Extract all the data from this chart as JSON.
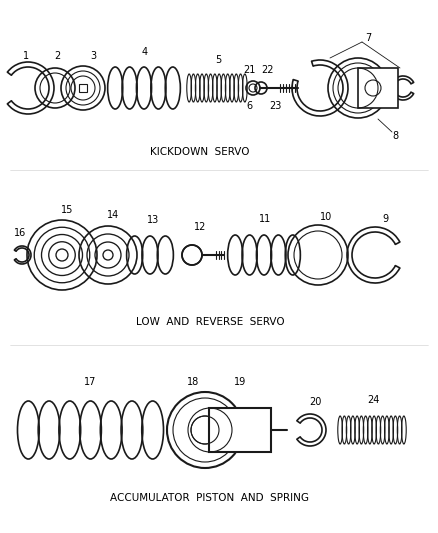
{
  "background_color": "#ffffff",
  "line_color": "#1a1a1a",
  "section_labels": [
    "KICKDOWN  SERVO",
    "LOW  AND  REVERSE  SERVO",
    "ACCUMULATOR  PISTON  AND  SPRING"
  ],
  "section_label_fontsize": 7.5,
  "part_label_fontsize": 7,
  "fig_width": 4.38,
  "fig_height": 5.33,
  "dpi": 100
}
